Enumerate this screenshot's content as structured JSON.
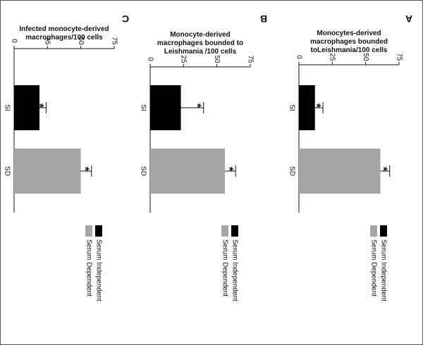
{
  "chart_data": [
    {
      "type": "bar",
      "panel": "A",
      "title": "Monocytes-derived macrophages bounded toLeishmania/100 cells",
      "title_lines": [
        "Monocytes-derived",
        "macrophages bounded",
        "toLeishmania/100 cells"
      ],
      "categories": [
        "SI",
        "SD"
      ],
      "values": [
        12,
        61
      ],
      "errors": [
        6,
        7
      ],
      "significance": [
        "*",
        "*"
      ],
      "ylim": [
        0,
        75
      ],
      "yticks": [
        "0",
        "25",
        "50",
        "75"
      ],
      "xlabel": "",
      "ylabel": ""
    },
    {
      "type": "bar",
      "panel": "B",
      "title": "Monocyte-derived macrophages bounded to Leishmania /100 cells",
      "title_lines": [
        "Monocyte-derived",
        "macrophages bounded to",
        "Leishmania /100 cells"
      ],
      "categories": [
        "SI",
        "SD"
      ],
      "values": [
        23,
        56
      ],
      "errors": [
        17,
        8
      ],
      "significance": [
        "*",
        "*"
      ],
      "ylim": [
        0,
        75
      ],
      "yticks": [
        "0",
        "25",
        "50",
        "75"
      ],
      "xlabel": "",
      "ylabel": ""
    },
    {
      "type": "bar",
      "panel": "C",
      "title": "Infected monocyte-derived macrophages/100 cells",
      "title_lines": [
        "Infected monocyte-derived",
        "macrophages/100 cells"
      ],
      "categories": [
        "SI",
        "SD"
      ],
      "values": [
        19,
        50
      ],
      "errors": [
        5,
        8
      ],
      "significance": [
        "*",
        "*"
      ],
      "ylim": [
        0,
        75
      ],
      "yticks": [
        "0",
        "25",
        "50",
        "75"
      ],
      "xlabel": "",
      "ylabel": ""
    }
  ],
  "legend": [
    {
      "label": "Serum Independent",
      "color": "#000000"
    },
    {
      "label": "Serum Dependent",
      "color": "#a6a6a6"
    }
  ]
}
